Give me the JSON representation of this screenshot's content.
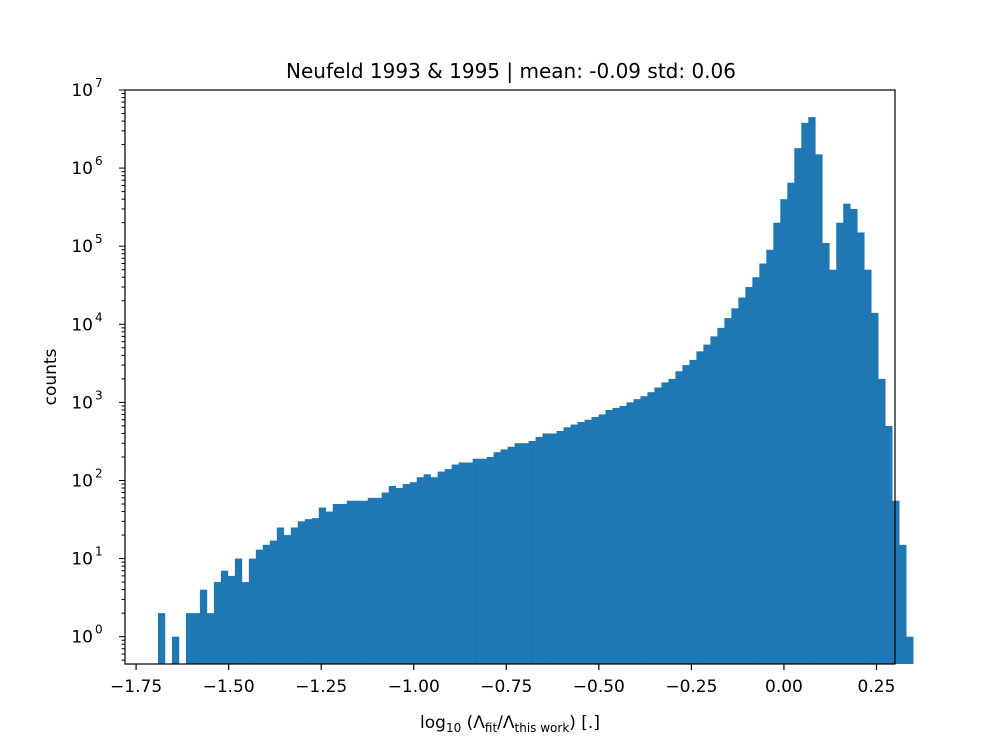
{
  "chart_data": {
    "type": "bar",
    "title": "Neufeld 1993 & 1995 | mean: -0.09 std: 0.06",
    "xlabel": {
      "prefix": "log",
      "prefix_sub": "10",
      "open": " (Λ",
      "sub1": "fit",
      "mid": "/Λ",
      "sub2": "this work",
      "close": ") [.]"
    },
    "ylabel": "counts",
    "xlim": [
      -1.78,
      0.3
    ],
    "ylim_log10": [
      -0.35,
      7
    ],
    "yscale": "log",
    "grid": false,
    "legend": "none",
    "bar_color": "#1f77b4",
    "x_ticks": [
      {
        "value": -1.75,
        "label": "−1.75"
      },
      {
        "value": -1.5,
        "label": "−1.50"
      },
      {
        "value": -1.25,
        "label": "−1.25"
      },
      {
        "value": -1.0,
        "label": "−1.00"
      },
      {
        "value": -0.75,
        "label": "−0.75"
      },
      {
        "value": -0.5,
        "label": "−0.50"
      },
      {
        "value": -0.25,
        "label": "−0.25"
      },
      {
        "value": 0.0,
        "label": "0.00"
      },
      {
        "value": 0.25,
        "label": "0.25"
      }
    ],
    "y_ticks": [
      {
        "exp": 0,
        "base": "10",
        "sup": "0"
      },
      {
        "exp": 1,
        "base": "10",
        "sup": "1"
      },
      {
        "exp": 2,
        "base": "10",
        "sup": "2"
      },
      {
        "exp": 3,
        "base": "10",
        "sup": "3"
      },
      {
        "exp": 4,
        "base": "10",
        "sup": "4"
      },
      {
        "exp": 5,
        "base": "10",
        "sup": "5"
      },
      {
        "exp": 6,
        "base": "10",
        "sup": "6"
      },
      {
        "exp": 7,
        "base": "10",
        "sup": "7"
      }
    ],
    "bin_start": -1.691,
    "bin_width": 0.01889,
    "counts": [
      2,
      0,
      1,
      0,
      2,
      2,
      4,
      2,
      5,
      7,
      6,
      10,
      5,
      10,
      13,
      15,
      17,
      25,
      20,
      25,
      30,
      32,
      33,
      45,
      40,
      50,
      50,
      55,
      55,
      55,
      60,
      60,
      70,
      85,
      80,
      90,
      95,
      110,
      120,
      110,
      130,
      140,
      160,
      170,
      170,
      190,
      190,
      200,
      230,
      250,
      270,
      300,
      300,
      320,
      360,
      400,
      400,
      430,
      480,
      520,
      560,
      600,
      650,
      700,
      800,
      850,
      900,
      1000,
      1100,
      1200,
      1350,
      1550,
      1800,
      2000,
      2500,
      3000,
      3500,
      4500,
      5500,
      7000,
      9000,
      12000,
      16000,
      22000,
      30000,
      40000,
      60000,
      90000,
      200000,
      400000,
      650000,
      1800000,
      3800000,
      4500000,
      1500000,
      110000,
      50000,
      200000,
      350000,
      300000,
      150000,
      50000,
      14000,
      2000,
      500,
      55,
      15,
      1
    ]
  }
}
